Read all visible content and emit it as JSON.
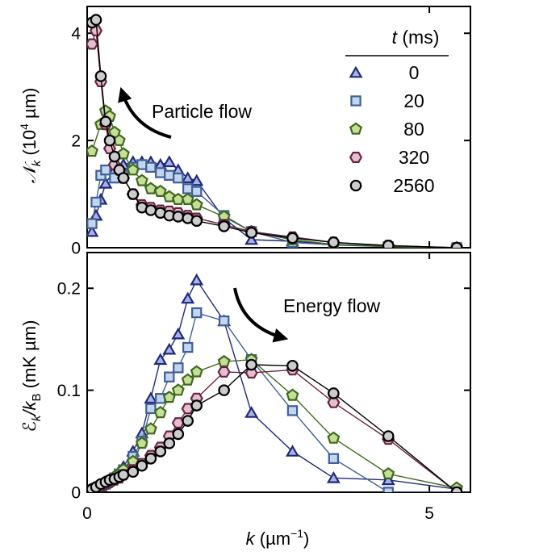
{
  "chart_data": [
    {
      "type": "line",
      "panel": "top",
      "ylabel": "𝒩_k (10⁴ µm)",
      "ylabel_main": "𝒩",
      "ylabel_sub": "k",
      "ylabel_unit_pre": " (10",
      "ylabel_unit_sup": "4",
      "ylabel_unit_post": " µm)",
      "xlim": [
        0,
        5.6
      ],
      "ylim": [
        0,
        4.5
      ],
      "yticks": [
        "0",
        "2",
        "4"
      ],
      "annotation": "Particle flow",
      "legend": {
        "title_var": "t",
        "title_unit": " (ms)",
        "entries": [
          "0",
          "20",
          "80",
          "320",
          "2560"
        ],
        "placement": "top-right"
      },
      "series": [
        {
          "name": "0",
          "marker": "triangle",
          "color": "#1f2a7a",
          "fill": "#a9b4e6",
          "x": [
            0.07,
            0.13,
            0.2,
            0.27,
            0.4,
            0.53,
            0.67,
            0.8,
            0.93,
            1.07,
            1.2,
            1.33,
            1.47,
            1.6,
            2.0,
            2.4,
            3.0,
            3.6,
            4.4,
            5.4
          ],
          "y": [
            0.3,
            0.6,
            0.9,
            1.2,
            1.45,
            1.55,
            1.6,
            1.6,
            1.6,
            1.55,
            1.6,
            1.45,
            1.3,
            1.25,
            0.55,
            0.15,
            0.12,
            0.06,
            0.03,
            0.0
          ]
        },
        {
          "name": "20",
          "marker": "square",
          "color": "#3f5f96",
          "fill": "#c3d6ee",
          "x": [
            0.07,
            0.13,
            0.2,
            0.27,
            0.4,
            0.53,
            0.67,
            0.8,
            0.93,
            1.07,
            1.2,
            1.33,
            1.47,
            1.6,
            2.0,
            2.4,
            3.0,
            3.6,
            4.4,
            5.4
          ],
          "y": [
            0.45,
            0.85,
            1.35,
            1.45,
            1.3,
            1.35,
            1.5,
            1.55,
            1.5,
            1.4,
            1.35,
            1.3,
            1.1,
            1.05,
            0.6,
            0.3,
            0.1,
            0.05,
            0.02,
            0.0
          ]
        },
        {
          "name": "80",
          "marker": "pentagon",
          "color": "#3f6a1c",
          "fill": "#c6de9a",
          "x": [
            0.07,
            0.2,
            0.27,
            0.33,
            0.4,
            0.47,
            0.53,
            0.67,
            0.8,
            0.93,
            1.07,
            1.2,
            1.33,
            1.47,
            1.6,
            2.0,
            2.4,
            3.0,
            3.6,
            4.4,
            5.4
          ],
          "y": [
            1.8,
            2.3,
            2.55,
            2.45,
            2.15,
            2.0,
            1.75,
            1.45,
            1.25,
            1.1,
            1.05,
            0.95,
            0.9,
            0.9,
            0.8,
            0.58,
            0.3,
            0.15,
            0.06,
            0.02,
            0.0
          ]
        },
        {
          "name": "320",
          "marker": "hexagon",
          "color": "#6b2341",
          "fill": "#e2c0cf",
          "x": [
            0.07,
            0.13,
            0.2,
            0.27,
            0.33,
            0.4,
            0.47,
            0.53,
            0.67,
            0.8,
            0.93,
            1.07,
            1.2,
            1.33,
            1.47,
            1.6,
            2.0,
            2.4,
            3.0,
            3.6,
            4.4,
            5.4
          ],
          "y": [
            3.8,
            4.05,
            3.1,
            2.3,
            1.85,
            1.55,
            1.45,
            1.3,
            1.0,
            0.8,
            0.75,
            0.7,
            0.68,
            0.65,
            0.6,
            0.55,
            0.43,
            0.3,
            0.2,
            0.1,
            0.04,
            0.0
          ]
        },
        {
          "name": "2560",
          "marker": "circle",
          "color": "#000000",
          "fill": "#cccccc",
          "x": [
            0.07,
            0.13,
            0.2,
            0.27,
            0.33,
            0.4,
            0.47,
            0.53,
            0.67,
            0.8,
            0.93,
            1.07,
            1.2,
            1.33,
            1.47,
            1.6,
            2.0,
            2.4,
            3.0,
            3.6,
            4.4,
            5.4
          ],
          "y": [
            4.2,
            4.25,
            3.2,
            2.35,
            2.0,
            1.7,
            1.45,
            1.3,
            1.0,
            0.75,
            0.7,
            0.65,
            0.6,
            0.58,
            0.55,
            0.5,
            0.4,
            0.28,
            0.18,
            0.1,
            0.04,
            0.0
          ]
        }
      ]
    },
    {
      "type": "line",
      "panel": "bottom",
      "xlabel": "k (µm⁻¹)",
      "xlabel_main": "k",
      "xlabel_unit_pre": " (µm",
      "xlabel_unit_sup": "−1",
      "xlabel_unit_post": ")",
      "ylabel": "ℰ_k/k_B (mK µm)",
      "ylabel_pre": "ℰ",
      "ylabel_sub1": "k",
      "ylabel_mid": "/k",
      "ylabel_sub2": "B",
      "ylabel_unit": " (mK µm)",
      "xlim": [
        0,
        5.6
      ],
      "ylim": [
        0,
        0.235
      ],
      "xticks": [
        "0",
        "5"
      ],
      "yticks": [
        "0",
        "0.1",
        "0.2"
      ],
      "annotation": "Energy flow",
      "series": [
        {
          "name": "0",
          "marker": "triangle",
          "x": [
            0.07,
            0.13,
            0.2,
            0.27,
            0.33,
            0.4,
            0.47,
            0.53,
            0.67,
            0.8,
            0.93,
            1.07,
            1.2,
            1.33,
            1.47,
            1.6,
            2.0,
            2.4,
            3.0,
            3.6,
            4.4,
            5.4
          ],
          "y": [
            0.0,
            0.003,
            0.006,
            0.009,
            0.012,
            0.016,
            0.02,
            0.025,
            0.04,
            0.058,
            0.092,
            0.13,
            0.14,
            0.155,
            0.19,
            0.208,
            0.168,
            0.078,
            0.04,
            0.014,
            0.012,
            0.003
          ]
        },
        {
          "name": "20",
          "marker": "square",
          "x": [
            0.07,
            0.13,
            0.2,
            0.27,
            0.33,
            0.4,
            0.47,
            0.53,
            0.67,
            0.8,
            0.93,
            1.07,
            1.2,
            1.33,
            1.47,
            1.6,
            2.0,
            2.4,
            3.0,
            3.6,
            4.4,
            5.4
          ],
          "y": [
            0.0,
            0.003,
            0.006,
            0.008,
            0.011,
            0.014,
            0.018,
            0.022,
            0.035,
            0.05,
            0.082,
            0.092,
            0.113,
            0.122,
            0.142,
            0.176,
            0.168,
            0.13,
            0.08,
            0.033,
            0.0,
            0.0
          ]
        },
        {
          "name": "80",
          "marker": "pentagon",
          "x": [
            0.07,
            0.2,
            0.27,
            0.33,
            0.4,
            0.47,
            0.53,
            0.67,
            0.8,
            0.93,
            1.07,
            1.2,
            1.33,
            1.47,
            1.6,
            2.0,
            2.4,
            3.0,
            3.6,
            4.4,
            5.4
          ],
          "y": [
            0.003,
            0.006,
            0.009,
            0.012,
            0.015,
            0.018,
            0.022,
            0.03,
            0.048,
            0.062,
            0.078,
            0.093,
            0.1,
            0.11,
            0.118,
            0.128,
            0.13,
            0.095,
            0.053,
            0.018,
            0.004
          ]
        },
        {
          "name": "320",
          "marker": "hexagon",
          "x": [
            0.07,
            0.13,
            0.2,
            0.27,
            0.33,
            0.4,
            0.47,
            0.53,
            0.67,
            0.8,
            0.93,
            1.07,
            1.2,
            1.33,
            1.47,
            1.6,
            2.0,
            2.4,
            3.0,
            3.6,
            4.4,
            5.4
          ],
          "y": [
            0.002,
            0.004,
            0.006,
            0.008,
            0.01,
            0.012,
            0.014,
            0.017,
            0.022,
            0.028,
            0.036,
            0.044,
            0.055,
            0.068,
            0.082,
            0.092,
            0.118,
            0.117,
            0.12,
            0.088,
            0.052,
            0.0
          ]
        },
        {
          "name": "2560",
          "marker": "circle",
          "x": [
            0.07,
            0.13,
            0.2,
            0.27,
            0.33,
            0.4,
            0.47,
            0.53,
            0.67,
            0.8,
            0.93,
            1.07,
            1.2,
            1.33,
            1.47,
            1.6,
            2.0,
            2.4,
            3.0,
            3.6,
            4.4,
            5.4
          ],
          "y": [
            0.003,
            0.005,
            0.008,
            0.01,
            0.012,
            0.013,
            0.015,
            0.017,
            0.02,
            0.026,
            0.033,
            0.04,
            0.048,
            0.057,
            0.07,
            0.085,
            0.1,
            0.125,
            0.124,
            0.097,
            0.055,
            0.0
          ]
        }
      ]
    }
  ]
}
